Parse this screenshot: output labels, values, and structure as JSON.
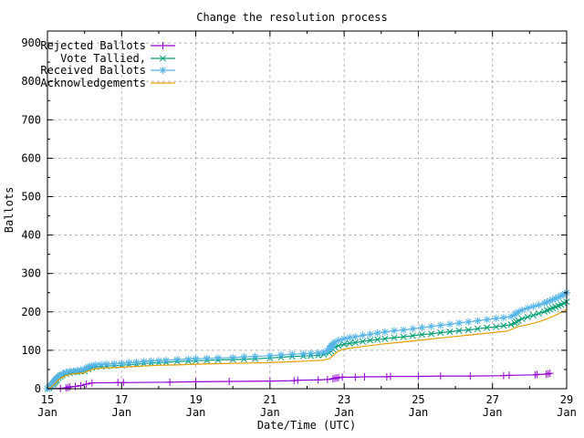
{
  "chart_data": {
    "type": "line",
    "title": "Change the resolution process",
    "xlabel": "Date/Time (UTC)",
    "ylabel": "Ballots",
    "xlim": [
      "15 Jan",
      "29 Jan"
    ],
    "ylim": [
      0,
      900
    ],
    "grid": true,
    "legend_position": "top-left",
    "x_ticks": [
      {
        "day": 15,
        "top": "15",
        "bottom": "Jan"
      },
      {
        "day": 17,
        "top": "17",
        "bottom": "Jan"
      },
      {
        "day": 19,
        "top": "19",
        "bottom": "Jan"
      },
      {
        "day": 21,
        "top": "21",
        "bottom": "Jan"
      },
      {
        "day": 23,
        "top": "23",
        "bottom": "Jan"
      },
      {
        "day": 25,
        "top": "25",
        "bottom": "Jan"
      },
      {
        "day": 27,
        "top": "27",
        "bottom": "Jan"
      },
      {
        "day": 29,
        "top": "29",
        "bottom": "Jan"
      }
    ],
    "x_minor_days": [
      16,
      18,
      20,
      22,
      24,
      26,
      28
    ],
    "y_ticks": [
      0,
      100,
      200,
      300,
      400,
      500,
      600,
      700,
      800,
      900
    ],
    "y_minor": [
      50,
      150,
      250,
      350,
      450,
      550,
      650,
      750,
      850
    ],
    "colors": {
      "rejected": "#9400d3",
      "tallied": "#009e73",
      "received": "#56b4e9",
      "acknowledgements": "#e69f00",
      "grid": "#b4b4b4",
      "border": "#000000"
    },
    "series": [
      {
        "name": "Rejected Ballots",
        "color": "#9400d3",
        "marker": "plus",
        "points": [
          [
            15.0,
            0
          ],
          [
            15.35,
            1
          ],
          [
            15.5,
            2
          ],
          [
            15.55,
            3
          ],
          [
            15.6,
            5
          ],
          [
            15.75,
            6
          ],
          [
            15.9,
            8
          ],
          [
            16.05,
            12
          ],
          [
            16.2,
            15
          ],
          [
            16.9,
            16
          ],
          [
            17.05,
            16
          ],
          [
            18.3,
            17
          ],
          [
            19.0,
            18
          ],
          [
            19.9,
            19
          ],
          [
            21.0,
            20
          ],
          [
            21.65,
            21
          ],
          [
            21.75,
            22
          ],
          [
            22.3,
            23
          ],
          [
            22.55,
            24
          ],
          [
            22.7,
            26
          ],
          [
            22.75,
            27
          ],
          [
            22.8,
            28
          ],
          [
            22.85,
            29
          ],
          [
            22.95,
            30
          ],
          [
            23.3,
            30
          ],
          [
            23.55,
            31
          ],
          [
            24.15,
            31
          ],
          [
            24.25,
            32
          ],
          [
            25.0,
            32
          ],
          [
            25.6,
            33
          ],
          [
            26.4,
            33
          ],
          [
            27.3,
            34
          ],
          [
            27.45,
            35
          ],
          [
            28.15,
            36
          ],
          [
            28.2,
            37
          ],
          [
            28.45,
            38
          ],
          [
            28.5,
            39
          ],
          [
            28.55,
            40
          ]
        ]
      },
      {
        "name": "Vote Tallied,",
        "color": "#009e73",
        "marker": "cross",
        "points": [
          [
            15.0,
            0
          ],
          [
            15.05,
            2
          ],
          [
            15.1,
            6
          ],
          [
            15.15,
            11
          ],
          [
            15.2,
            17
          ],
          [
            15.25,
            23
          ],
          [
            15.3,
            28
          ],
          [
            15.35,
            32
          ],
          [
            15.4,
            35
          ],
          [
            15.5,
            39
          ],
          [
            15.6,
            41
          ],
          [
            15.7,
            43
          ],
          [
            15.8,
            44
          ],
          [
            15.9,
            45
          ],
          [
            16.0,
            46
          ],
          [
            16.1,
            51
          ],
          [
            16.2,
            55
          ],
          [
            16.3,
            57
          ],
          [
            16.45,
            58
          ],
          [
            16.6,
            59
          ],
          [
            16.8,
            60
          ],
          [
            17.0,
            61
          ],
          [
            17.2,
            63
          ],
          [
            17.4,
            64
          ],
          [
            17.6,
            66
          ],
          [
            17.8,
            67
          ],
          [
            18.0,
            68
          ],
          [
            18.2,
            69
          ],
          [
            18.5,
            71
          ],
          [
            18.8,
            72
          ],
          [
            19.0,
            73
          ],
          [
            19.3,
            74
          ],
          [
            19.6,
            75
          ],
          [
            20.0,
            76
          ],
          [
            20.3,
            77
          ],
          [
            20.6,
            78
          ],
          [
            21.0,
            80
          ],
          [
            21.3,
            82
          ],
          [
            21.6,
            84
          ],
          [
            21.9,
            85
          ],
          [
            22.1,
            86
          ],
          [
            22.3,
            87
          ],
          [
            22.45,
            89
          ],
          [
            22.6,
            93
          ],
          [
            22.65,
            98
          ],
          [
            22.7,
            103
          ],
          [
            22.75,
            108
          ],
          [
            22.85,
            112
          ],
          [
            23.0,
            116
          ],
          [
            23.15,
            118
          ],
          [
            23.3,
            120
          ],
          [
            23.5,
            123
          ],
          [
            23.7,
            126
          ],
          [
            23.9,
            128
          ],
          [
            24.1,
            130
          ],
          [
            24.35,
            133
          ],
          [
            24.6,
            135
          ],
          [
            24.85,
            138
          ],
          [
            25.1,
            141
          ],
          [
            25.35,
            143
          ],
          [
            25.6,
            146
          ],
          [
            25.85,
            148
          ],
          [
            26.1,
            151
          ],
          [
            26.35,
            153
          ],
          [
            26.6,
            156
          ],
          [
            26.85,
            159
          ],
          [
            27.1,
            161
          ],
          [
            27.3,
            164
          ],
          [
            27.5,
            167
          ],
          [
            27.6,
            171
          ],
          [
            27.7,
            177
          ],
          [
            27.8,
            182
          ],
          [
            27.95,
            187
          ],
          [
            28.1,
            191
          ],
          [
            28.25,
            196
          ],
          [
            28.4,
            201
          ],
          [
            28.55,
            207
          ],
          [
            28.7,
            213
          ],
          [
            28.85,
            219
          ],
          [
            29.0,
            226
          ]
        ]
      },
      {
        "name": "Received Ballots",
        "color": "#56b4e9",
        "marker": "asterisk",
        "points": [
          [
            15.0,
            0
          ],
          [
            15.05,
            4
          ],
          [
            15.1,
            9
          ],
          [
            15.15,
            15
          ],
          [
            15.2,
            21
          ],
          [
            15.25,
            27
          ],
          [
            15.3,
            32
          ],
          [
            15.35,
            36
          ],
          [
            15.4,
            39
          ],
          [
            15.5,
            43
          ],
          [
            15.6,
            45
          ],
          [
            15.7,
            46
          ],
          [
            15.8,
            47
          ],
          [
            15.9,
            49
          ],
          [
            16.0,
            51
          ],
          [
            16.05,
            54
          ],
          [
            16.1,
            57
          ],
          [
            16.2,
            60
          ],
          [
            16.3,
            62
          ],
          [
            16.45,
            63
          ],
          [
            16.6,
            64
          ],
          [
            16.8,
            65
          ],
          [
            17.0,
            66
          ],
          [
            17.2,
            68
          ],
          [
            17.4,
            69
          ],
          [
            17.6,
            71
          ],
          [
            17.8,
            72
          ],
          [
            18.0,
            73
          ],
          [
            18.2,
            74
          ],
          [
            18.5,
            76
          ],
          [
            18.8,
            77
          ],
          [
            19.0,
            78
          ],
          [
            19.3,
            79
          ],
          [
            19.6,
            80
          ],
          [
            20.0,
            81
          ],
          [
            20.3,
            83
          ],
          [
            20.6,
            84
          ],
          [
            21.0,
            86
          ],
          [
            21.3,
            88
          ],
          [
            21.6,
            90
          ],
          [
            21.9,
            91
          ],
          [
            22.1,
            92
          ],
          [
            22.3,
            93
          ],
          [
            22.45,
            95
          ],
          [
            22.55,
            99
          ],
          [
            22.6,
            104
          ],
          [
            22.65,
            110
          ],
          [
            22.7,
            116
          ],
          [
            22.75,
            121
          ],
          [
            22.85,
            126
          ],
          [
            23.0,
            130
          ],
          [
            23.15,
            133
          ],
          [
            23.3,
            135
          ],
          [
            23.5,
            139
          ],
          [
            23.7,
            142
          ],
          [
            23.9,
            145
          ],
          [
            24.1,
            148
          ],
          [
            24.35,
            151
          ],
          [
            24.6,
            153
          ],
          [
            24.85,
            156
          ],
          [
            25.1,
            159
          ],
          [
            25.35,
            162
          ],
          [
            25.6,
            165
          ],
          [
            25.85,
            168
          ],
          [
            26.1,
            171
          ],
          [
            26.35,
            174
          ],
          [
            26.6,
            177
          ],
          [
            26.85,
            180
          ],
          [
            27.1,
            183
          ],
          [
            27.3,
            185
          ],
          [
            27.5,
            188
          ],
          [
            27.6,
            193
          ],
          [
            27.7,
            200
          ],
          [
            27.8,
            205
          ],
          [
            27.95,
            210
          ],
          [
            28.1,
            214
          ],
          [
            28.25,
            218
          ],
          [
            28.4,
            223
          ],
          [
            28.55,
            229
          ],
          [
            28.7,
            235
          ],
          [
            28.85,
            242
          ],
          [
            29.0,
            250
          ]
        ]
      },
      {
        "name": "Acknowledgements",
        "color": "#e69f00",
        "marker": "none",
        "points": [
          [
            15.0,
            0
          ],
          [
            15.1,
            4
          ],
          [
            15.2,
            13
          ],
          [
            15.3,
            23
          ],
          [
            15.4,
            30
          ],
          [
            15.5,
            34
          ],
          [
            15.6,
            37
          ],
          [
            15.8,
            40
          ],
          [
            16.0,
            42
          ],
          [
            16.1,
            46
          ],
          [
            16.2,
            50
          ],
          [
            16.3,
            52
          ],
          [
            16.5,
            54
          ],
          [
            16.8,
            55
          ],
          [
            17.0,
            56
          ],
          [
            17.4,
            58
          ],
          [
            17.8,
            60
          ],
          [
            18.0,
            61
          ],
          [
            18.5,
            62
          ],
          [
            19.0,
            64
          ],
          [
            19.5,
            65
          ],
          [
            20.0,
            66
          ],
          [
            20.5,
            67
          ],
          [
            21.0,
            68
          ],
          [
            21.5,
            70
          ],
          [
            22.0,
            72
          ],
          [
            22.4,
            74
          ],
          [
            22.6,
            78
          ],
          [
            22.7,
            86
          ],
          [
            22.8,
            95
          ],
          [
            22.9,
            100
          ],
          [
            23.0,
            103
          ],
          [
            23.2,
            106
          ],
          [
            23.5,
            110
          ],
          [
            24.0,
            116
          ],
          [
            24.5,
            121
          ],
          [
            25.0,
            126
          ],
          [
            25.5,
            131
          ],
          [
            26.0,
            136
          ],
          [
            26.5,
            141
          ],
          [
            27.0,
            146
          ],
          [
            27.4,
            150
          ],
          [
            27.5,
            154
          ],
          [
            27.7,
            162
          ],
          [
            28.0,
            168
          ],
          [
            28.3,
            176
          ],
          [
            28.6,
            187
          ],
          [
            28.8,
            196
          ],
          [
            29.0,
            207
          ]
        ]
      }
    ]
  }
}
